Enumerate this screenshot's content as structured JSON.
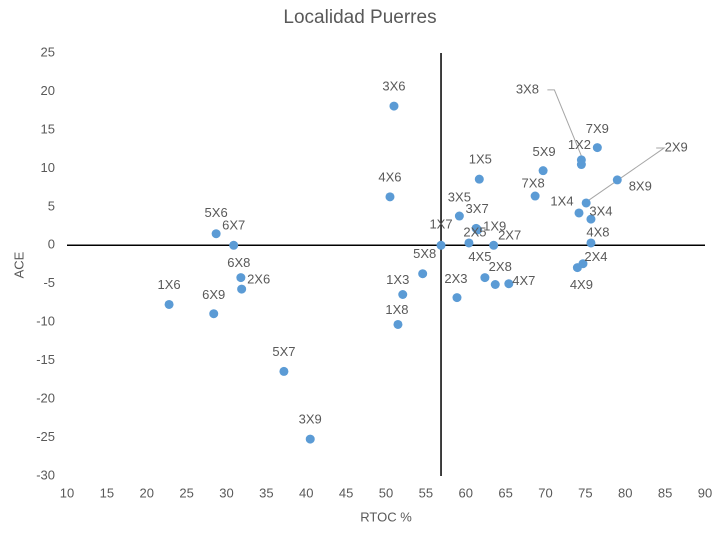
{
  "chart_data": {
    "type": "scatter",
    "title": "Localidad Puerres",
    "x_label": "RTOC %",
    "y_label": "ACE",
    "color": "#5b9bd5",
    "grid": false,
    "xlim": [
      10,
      90
    ],
    "xticks": [
      10,
      15,
      20,
      25,
      30,
      35,
      40,
      45,
      50,
      55,
      60,
      65,
      70,
      75,
      80,
      85,
      90
    ],
    "ylim": [
      -30,
      25
    ],
    "yticks": [
      -30,
      -25,
      -20,
      -15,
      -10,
      -5,
      0,
      5,
      10,
      15,
      20,
      25
    ],
    "x_axis_crosses_at": 0,
    "y_axis_crosses_at": 56.9,
    "series": [
      {
        "name": null,
        "color": "#5b9bd5",
        "labels": [
          "1X6",
          "6X9",
          "5X6",
          "6X7",
          "6X8",
          "2X6",
          "5X7",
          "3X9",
          "3X6",
          "4X6",
          "1X3",
          "1X8",
          "5X8",
          "1X7",
          "3X5",
          "2X3",
          "3X7",
          "1X9",
          "1X5",
          "2X5",
          "2X7",
          "4X5",
          "2X8",
          "4X7",
          "5X9",
          "7X8",
          "3X8",
          "1X2",
          "7X9",
          "2X9",
          "8X9",
          "1X4",
          "3X4",
          "4X8",
          "2X4",
          "4X9"
        ],
        "x": [
          22.8,
          28.4,
          28.7,
          30.9,
          31.8,
          31.9,
          37.2,
          40.5,
          51.0,
          50.5,
          52.1,
          51.5,
          54.6,
          56.9,
          59.2,
          58.9,
          61.3,
          61.5,
          61.7,
          60.4,
          63.5,
          62.4,
          63.7,
          65.4,
          69.7,
          68.7,
          74.5,
          74.5,
          76.5,
          75.1,
          79.0,
          74.2,
          75.7,
          75.7,
          74.7,
          74.0
        ],
        "values": [
          -7.7,
          -8.9,
          1.5,
          0,
          -4.2,
          -5.7,
          -16.4,
          -25.2,
          18.1,
          6.3,
          -6.4,
          -10.3,
          -3.7,
          0,
          3.8,
          -6.8,
          2.2,
          2.0,
          8.6,
          0.3,
          0,
          -4.2,
          -5.1,
          -5.0,
          9.7,
          6.4,
          11.1,
          10.5,
          12.7,
          5.5,
          8.5,
          4.2,
          3.4,
          0.3,
          -2.4,
          -2.9
        ]
      }
    ]
  }
}
